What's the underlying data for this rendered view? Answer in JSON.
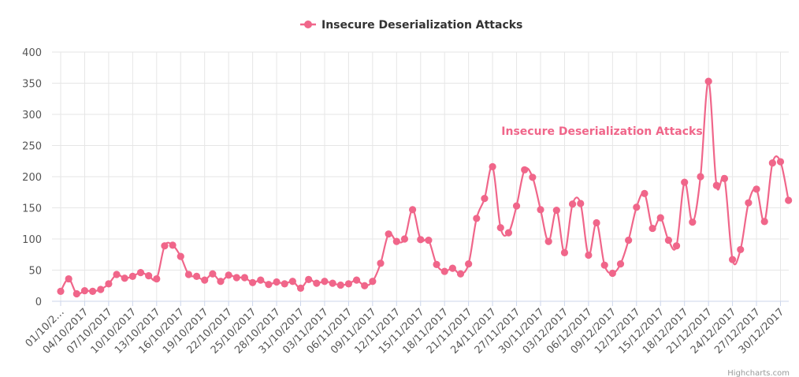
{
  "chart_data": {
    "type": "line",
    "title": "",
    "xlabel": "",
    "ylabel": "",
    "ylim": [
      0,
      400
    ],
    "yticks": [
      0,
      50,
      100,
      150,
      200,
      250,
      300,
      350,
      400
    ],
    "grid": true,
    "legend_position": "top-center",
    "color": "#f0668a",
    "x": [
      "01/10/2017",
      "02/10/2017",
      "03/10/2017",
      "04/10/2017",
      "05/10/2017",
      "06/10/2017",
      "07/10/2017",
      "08/10/2017",
      "09/10/2017",
      "10/10/2017",
      "11/10/2017",
      "12/10/2017",
      "13/10/2017",
      "14/10/2017",
      "15/10/2017",
      "16/10/2017",
      "17/10/2017",
      "18/10/2017",
      "19/10/2017",
      "20/10/2017",
      "21/10/2017",
      "22/10/2017",
      "23/10/2017",
      "24/10/2017",
      "25/10/2017",
      "26/10/2017",
      "27/10/2017",
      "28/10/2017",
      "29/10/2017",
      "30/10/2017",
      "31/10/2017",
      "01/11/2017",
      "02/11/2017",
      "03/11/2017",
      "04/11/2017",
      "05/11/2017",
      "06/11/2017",
      "07/11/2017",
      "08/11/2017",
      "09/11/2017",
      "10/11/2017",
      "11/11/2017",
      "12/11/2017",
      "13/11/2017",
      "14/11/2017",
      "15/11/2017",
      "16/11/2017",
      "17/11/2017",
      "18/11/2017",
      "19/11/2017",
      "20/11/2017",
      "21/11/2017",
      "22/11/2017",
      "23/11/2017",
      "24/11/2017",
      "25/11/2017",
      "26/11/2017",
      "27/11/2017",
      "28/11/2017",
      "29/11/2017",
      "30/11/2017",
      "01/12/2017",
      "02/12/2017",
      "03/12/2017",
      "04/12/2017",
      "05/12/2017",
      "06/12/2017",
      "07/12/2017",
      "08/12/2017",
      "09/12/2017",
      "10/12/2017",
      "11/12/2017",
      "12/12/2017",
      "13/12/2017",
      "14/12/2017",
      "15/12/2017",
      "16/12/2017",
      "17/12/2017",
      "18/12/2017",
      "19/12/2017",
      "20/12/2017",
      "21/12/2017",
      "22/12/2017",
      "23/12/2017",
      "24/12/2017",
      "25/12/2017",
      "26/12/2017",
      "27/12/2017",
      "28/12/2017",
      "29/12/2017",
      "30/12/2017",
      "31/12/2017"
    ],
    "tick_labels": [
      "01/10/2…",
      "04/10/2017",
      "07/10/2017",
      "10/10/2017",
      "13/10/2017",
      "16/10/2017",
      "19/10/2017",
      "22/10/2017",
      "25/10/2017",
      "28/10/2017",
      "31/10/2017",
      "03/11/2017",
      "06/11/2017",
      "09/11/2017",
      "12/11/2017",
      "15/11/2017",
      "18/11/2017",
      "21/11/2017",
      "24/11/2017",
      "27/11/2017",
      "30/11/2017",
      "03/12/2017",
      "06/12/2017",
      "09/12/2017",
      "12/12/2017",
      "15/12/2017",
      "18/12/2017",
      "21/12/2017",
      "24/12/2017",
      "27/12/2017",
      "30/12/2017"
    ],
    "series": [
      {
        "name": "Insecure Deserialization Attacks",
        "values": [
          16,
          36,
          12,
          17,
          16,
          19,
          28,
          43,
          37,
          40,
          46,
          41,
          36,
          89,
          90,
          72,
          43,
          40,
          34,
          44,
          32,
          42,
          38,
          38,
          30,
          34,
          27,
          31,
          28,
          32,
          21,
          35,
          29,
          32,
          29,
          26,
          28,
          34,
          25,
          32,
          61,
          108,
          96,
          100,
          147,
          99,
          98,
          59,
          48,
          53,
          44,
          60,
          133,
          165,
          216,
          118,
          110,
          153,
          211,
          199,
          147,
          96,
          146,
          78,
          156,
          157,
          74,
          126,
          58,
          45,
          60,
          98,
          151,
          173,
          117,
          134,
          98,
          89,
          191,
          127,
          200,
          353,
          186,
          197,
          67,
          83,
          158,
          180,
          128,
          222,
          224,
          162
        ]
      }
    ],
    "annotation": "Insecure Deserialization Attacks",
    "credits": "Highcharts.com"
  }
}
